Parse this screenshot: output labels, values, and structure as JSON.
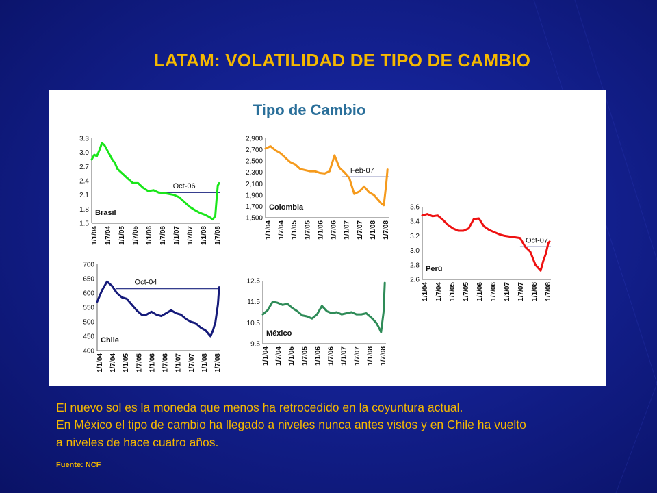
{
  "slide": {
    "title": "LATAM: VOLATILIDAD DE TIPO DE CAMBIO",
    "text_lines": [
      "El nuevo sol es la moneda que menos ha retrocedido en la coyuntura actual.",
      "En México el tipo de cambio ha llegado a niveles nunca antes vistos y en Chile ha vuelto",
      "a niveles de hace cuatro años."
    ],
    "source": "Fuente:  NCF",
    "colors": {
      "background": "#13208f",
      "title": "#f5b800",
      "text": "#f5b800"
    }
  },
  "figure_title": "Tipo de Cambio",
  "chart_data": [
    {
      "type": "line",
      "name": "Brasil",
      "color": "#19e619",
      "ylim": [
        1.5,
        3.3
      ],
      "yticks": [
        "3.3",
        "3.0",
        "2.7",
        "2.4",
        "2.1",
        "1.8",
        "1.5"
      ],
      "xticks": [
        "1/1/04",
        "1/7/04",
        "1/1/05",
        "1/7/05",
        "1/1/06",
        "1/7/06",
        "1/1/07",
        "1/7/07",
        "1/1/08",
        "1/7/08"
      ],
      "x": [
        0,
        0.1,
        0.2,
        0.3,
        0.4,
        0.5,
        0.6,
        0.7,
        0.8,
        0.9,
        1.0,
        1.2,
        1.4,
        1.6,
        1.8,
        2.0,
        2.2,
        2.4,
        2.6,
        2.8,
        3.0,
        3.2,
        3.4,
        3.6,
        3.8,
        4.0,
        4.2,
        4.4,
        4.6,
        4.7,
        4.8,
        4.85,
        4.9,
        4.95
      ],
      "y": [
        2.85,
        2.95,
        2.92,
        3.05,
        3.2,
        3.15,
        3.05,
        2.95,
        2.85,
        2.78,
        2.65,
        2.55,
        2.45,
        2.35,
        2.35,
        2.25,
        2.18,
        2.2,
        2.15,
        2.14,
        2.12,
        2.1,
        2.05,
        1.95,
        1.85,
        1.78,
        1.72,
        1.68,
        1.62,
        1.58,
        1.65,
        2.0,
        2.3,
        2.35
      ],
      "ref_label": "Oct-06",
      "ref_value": 2.15,
      "ref_start": 2.75
    },
    {
      "type": "line",
      "name": "Colombia",
      "color": "#f59a1c",
      "ylim": [
        1500,
        2900
      ],
      "yticks": [
        "2,900",
        "2,700",
        "2,500",
        "2,300",
        "2,100",
        "1,900",
        "1,700",
        "1,500"
      ],
      "xticks": [
        "1/1/04",
        "1/7/04",
        "1/1/05",
        "1/7/05",
        "1/1/06",
        "1/7/06",
        "1/1/07",
        "1/7/07",
        "1/1/08",
        "1/7/08"
      ],
      "x": [
        0,
        0.2,
        0.4,
        0.6,
        0.8,
        1.0,
        1.2,
        1.4,
        1.6,
        1.8,
        2.0,
        2.2,
        2.4,
        2.6,
        2.8,
        3.0,
        3.2,
        3.4,
        3.6,
        3.8,
        4.0,
        4.2,
        4.4,
        4.6,
        4.7,
        4.8,
        4.9,
        4.95
      ],
      "y": [
        2720,
        2760,
        2690,
        2640,
        2560,
        2480,
        2440,
        2360,
        2340,
        2320,
        2320,
        2290,
        2280,
        2320,
        2600,
        2380,
        2300,
        2200,
        1920,
        1960,
        2050,
        1950,
        1900,
        1800,
        1750,
        1720,
        2100,
        2350
      ],
      "ref_label": "Feb-07",
      "ref_value": 2220,
      "ref_start": 3.1
    },
    {
      "type": "line",
      "name": "Perú",
      "color": "#ee1111",
      "ylim": [
        2.6,
        3.6
      ],
      "yticks": [
        "3.6",
        "3.4",
        "3.2",
        "3.0",
        "2.8",
        "2.6"
      ],
      "xticks": [
        "1/1/04",
        "1/7/04",
        "1/1/05",
        "1/7/05",
        "1/1/06",
        "1/7/06",
        "1/1/07",
        "1/7/07",
        "1/1/08",
        "1/7/08"
      ],
      "x": [
        0,
        0.2,
        0.4,
        0.6,
        0.8,
        1.0,
        1.2,
        1.4,
        1.6,
        1.8,
        2.0,
        2.2,
        2.4,
        2.6,
        2.8,
        3.0,
        3.2,
        3.4,
        3.6,
        3.8,
        4.0,
        4.2,
        4.4,
        4.6,
        4.7,
        4.8,
        4.9,
        4.95
      ],
      "y": [
        3.48,
        3.5,
        3.47,
        3.48,
        3.42,
        3.35,
        3.3,
        3.27,
        3.27,
        3.3,
        3.43,
        3.44,
        3.33,
        3.28,
        3.25,
        3.22,
        3.2,
        3.19,
        3.18,
        3.17,
        3.05,
        2.98,
        2.8,
        2.72,
        2.85,
        2.95,
        3.1,
        3.12
      ],
      "ref_label": "Oct-07",
      "ref_value": 3.05,
      "ref_start": 3.8
    },
    {
      "type": "line",
      "name": "Chile",
      "color": "#151a7a",
      "ylim": [
        400,
        700
      ],
      "yticks": [
        "700",
        "650",
        "600",
        "550",
        "500",
        "450",
        "400"
      ],
      "xticks": [
        "1/1/04",
        "1/7/04",
        "1/1/05",
        "1/7/05",
        "1/1/06",
        "1/7/06",
        "1/1/07",
        "1/7/07",
        "1/1/08",
        "1/7/08"
      ],
      "x": [
        0,
        0.2,
        0.4,
        0.6,
        0.8,
        1.0,
        1.2,
        1.4,
        1.6,
        1.8,
        2.0,
        2.2,
        2.4,
        2.6,
        2.8,
        3.0,
        3.2,
        3.4,
        3.6,
        3.8,
        4.0,
        4.2,
        4.4,
        4.6,
        4.7,
        4.8,
        4.9,
        4.95
      ],
      "y": [
        570,
        610,
        640,
        625,
        600,
        585,
        580,
        560,
        540,
        525,
        525,
        535,
        525,
        520,
        530,
        540,
        530,
        525,
        510,
        500,
        495,
        480,
        470,
        450,
        470,
        500,
        560,
        620
      ],
      "ref_label": "Oct-04",
      "ref_value": 615,
      "ref_start": 0.75
    },
    {
      "type": "line",
      "name": "México",
      "color": "#2e8b57",
      "ylim": [
        9.5,
        12.5
      ],
      "yticks": [
        "12.5",
        "11.5",
        "10.5",
        "9.5"
      ],
      "xticks": [
        "1/1/04",
        "1/7/04",
        "1/1/05",
        "1/7/05",
        "1/1/06",
        "1/7/06",
        "1/1/07",
        "1/7/07",
        "1/1/08",
        "1/7/08"
      ],
      "x": [
        0,
        0.2,
        0.4,
        0.6,
        0.8,
        1.0,
        1.2,
        1.4,
        1.6,
        1.8,
        2.0,
        2.2,
        2.4,
        2.6,
        2.8,
        3.0,
        3.2,
        3.4,
        3.6,
        3.8,
        4.0,
        4.2,
        4.4,
        4.6,
        4.7,
        4.8,
        4.9,
        4.95
      ],
      "y": [
        10.9,
        11.1,
        11.5,
        11.45,
        11.35,
        11.4,
        11.2,
        11.05,
        10.85,
        10.8,
        10.7,
        10.9,
        11.3,
        11.05,
        10.95,
        11.0,
        10.9,
        10.95,
        11.0,
        10.9,
        10.9,
        10.95,
        10.75,
        10.5,
        10.3,
        10.05,
        11.0,
        12.4
      ]
    }
  ]
}
